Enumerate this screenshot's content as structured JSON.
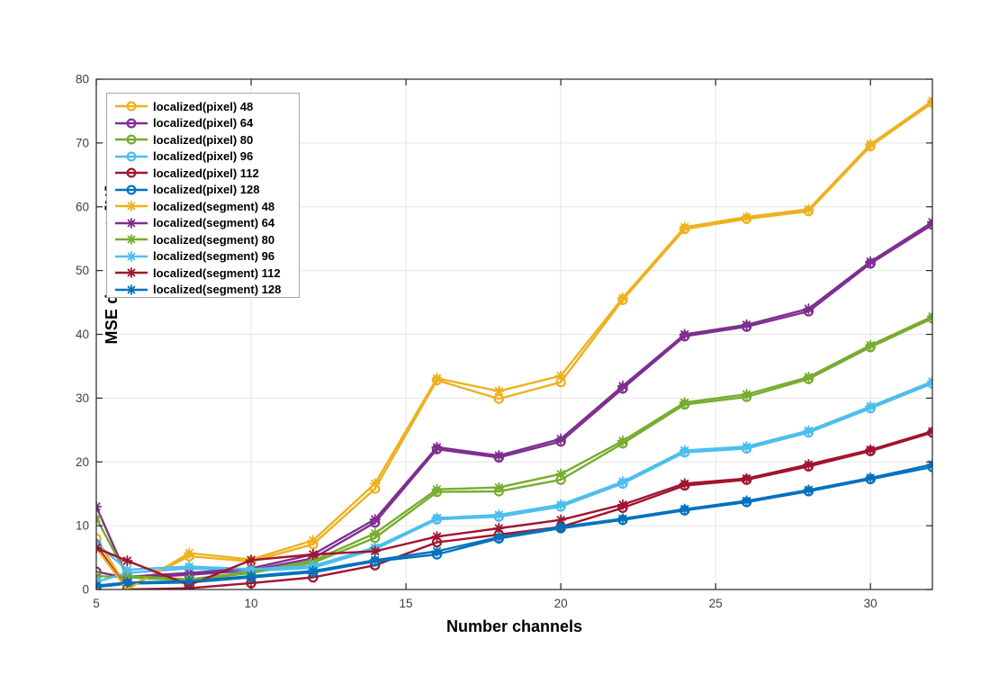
{
  "figure": {
    "background": "#ffffff",
    "axis_color": "#262626",
    "grid_color": "#e6e6e6",
    "tick_label_color": "#3f3f3f"
  },
  "chart_data": {
    "type": "line",
    "title": "",
    "xlabel": "Number channels",
    "ylabel": "MSE decrement  [%]",
    "xlim": [
      5,
      32
    ],
    "ylim": [
      0,
      80
    ],
    "x_ticks": [
      5,
      10,
      15,
      20,
      25,
      30
    ],
    "y_ticks": [
      0,
      10,
      20,
      30,
      40,
      50,
      60,
      70,
      80
    ],
    "grid": true,
    "legend_position": "top-left",
    "x": [
      5,
      6,
      8,
      10,
      12,
      14,
      16,
      18,
      20,
      22,
      24,
      26,
      28,
      30,
      32
    ],
    "series": [
      {
        "name": "localized(pixel) 48",
        "color": "#EDB120",
        "marker": "circle",
        "values": [
          8.0,
          0.3,
          5.2,
          4.4,
          7.1,
          15.8,
          32.8,
          29.9,
          32.5,
          45.4,
          56.5,
          58.1,
          59.3,
          69.5,
          76.3
        ]
      },
      {
        "name": "localized(pixel) 64",
        "color": "#7E2F8E",
        "marker": "circle",
        "values": [
          2.8,
          1.8,
          2.3,
          3.0,
          4.9,
          10.5,
          22.0,
          20.7,
          23.2,
          31.5,
          39.7,
          41.2,
          43.6,
          51.1,
          57.2
        ]
      },
      {
        "name": "localized(pixel) 80",
        "color": "#77AC30",
        "marker": "circle",
        "values": [
          2.1,
          1.9,
          1.4,
          2.6,
          4.2,
          8.1,
          15.3,
          15.4,
          17.2,
          22.9,
          29.0,
          30.2,
          33.0,
          38.0,
          42.5
        ]
      },
      {
        "name": "localized(pixel) 96",
        "color": "#4DBEEE",
        "marker": "circle",
        "values": [
          1.2,
          2.6,
          3.3,
          2.9,
          3.4,
          6.3,
          11.0,
          11.4,
          13.0,
          16.6,
          21.5,
          22.1,
          24.6,
          28.4,
          32.3
        ]
      },
      {
        "name": "localized(pixel) 112",
        "color": "#A2142F",
        "marker": "circle",
        "values": [
          7.0,
          0.0,
          0.2,
          1.0,
          1.9,
          3.8,
          7.4,
          8.6,
          9.8,
          12.8,
          16.3,
          17.2,
          19.3,
          21.7,
          24.6
        ]
      },
      {
        "name": "localized(pixel) 128",
        "color": "#0072BD",
        "marker": "circle",
        "values": [
          0.4,
          0.9,
          1.1,
          1.9,
          2.7,
          4.4,
          5.5,
          8.0,
          9.6,
          10.9,
          12.4,
          13.7,
          15.4,
          17.3,
          19.2
        ]
      },
      {
        "name": "localized(segment) 48",
        "color": "#EDB120",
        "marker": "asterisk",
        "values": [
          6.5,
          0.0,
          5.7,
          4.7,
          7.7,
          16.6,
          33.1,
          31.1,
          33.5,
          45.7,
          56.8,
          58.4,
          59.6,
          69.8,
          76.6
        ]
      },
      {
        "name": "localized(segment) 64",
        "color": "#7E2F8E",
        "marker": "asterisk",
        "values": [
          13.0,
          2.0,
          2.6,
          3.3,
          5.5,
          11.0,
          22.3,
          21.0,
          23.6,
          31.9,
          40.0,
          41.5,
          44.0,
          51.4,
          57.6
        ]
      },
      {
        "name": "localized(segment) 80",
        "color": "#77AC30",
        "marker": "asterisk",
        "values": [
          11.2,
          2.1,
          1.6,
          2.8,
          4.5,
          8.8,
          15.7,
          16.0,
          18.1,
          23.3,
          29.3,
          30.6,
          33.3,
          38.3,
          42.8
        ]
      },
      {
        "name": "localized(segment) 96",
        "color": "#4DBEEE",
        "marker": "asterisk",
        "values": [
          7.2,
          3.1,
          3.6,
          3.2,
          3.7,
          6.6,
          11.2,
          11.7,
          13.3,
          16.9,
          21.8,
          22.4,
          24.9,
          28.7,
          32.6
        ]
      },
      {
        "name": "localized(segment) 112",
        "color": "#A2142F",
        "marker": "asterisk",
        "values": [
          6.5,
          4.5,
          0.7,
          4.6,
          5.5,
          6.0,
          8.3,
          9.6,
          10.9,
          13.3,
          16.6,
          17.4,
          19.6,
          21.9,
          24.8
        ]
      },
      {
        "name": "localized(segment) 128",
        "color": "#0072BD",
        "marker": "asterisk",
        "values": [
          0.6,
          1.1,
          1.3,
          2.1,
          2.9,
          4.6,
          6.0,
          8.2,
          9.8,
          11.1,
          12.6,
          13.9,
          15.6,
          17.5,
          19.6
        ]
      }
    ]
  }
}
